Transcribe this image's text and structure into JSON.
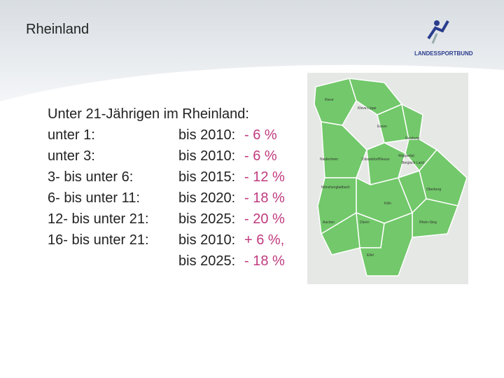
{
  "header": {
    "title": "Rheinland",
    "logo": "LANDESSPORTBUND"
  },
  "content": {
    "heading": "Unter 21-Jährigen im Rheinland:",
    "rows": [
      {
        "label": "unter 1:",
        "period": "bis 2010:",
        "change": "- 6 %"
      },
      {
        "label": "unter 3:",
        "period": "bis 2010:",
        "change": "- 6 %"
      },
      {
        "label": "3- bis unter 6:",
        "period": "bis 2015:",
        "change": "- 12 %"
      },
      {
        "label": "6- bis unter 11:",
        "period": "bis 2020:",
        "change": "- 18 %"
      },
      {
        "label": "12- bis unter 21:",
        "period": "bis 2025:",
        "change": "- 20 %"
      },
      {
        "label": "16- bis unter 21:",
        "period": "bis 2010:",
        "change": "+ 6 %,"
      },
      {
        "period": "bis 2025:",
        "change": "- 18 %"
      }
    ]
  },
  "map": {
    "regions": [
      "Kleve",
      "Kleve-Lippe",
      "Essen",
      "Duisburg",
      "Niederrhein",
      "Düsseldorf/Neuss",
      "Wuppertal",
      "Bergisch Land",
      "Mönchengladbach",
      "Oberberg",
      "Köln",
      "Aachen",
      "Düren",
      "Rhein-Sieg",
      "Eifel"
    ]
  }
}
